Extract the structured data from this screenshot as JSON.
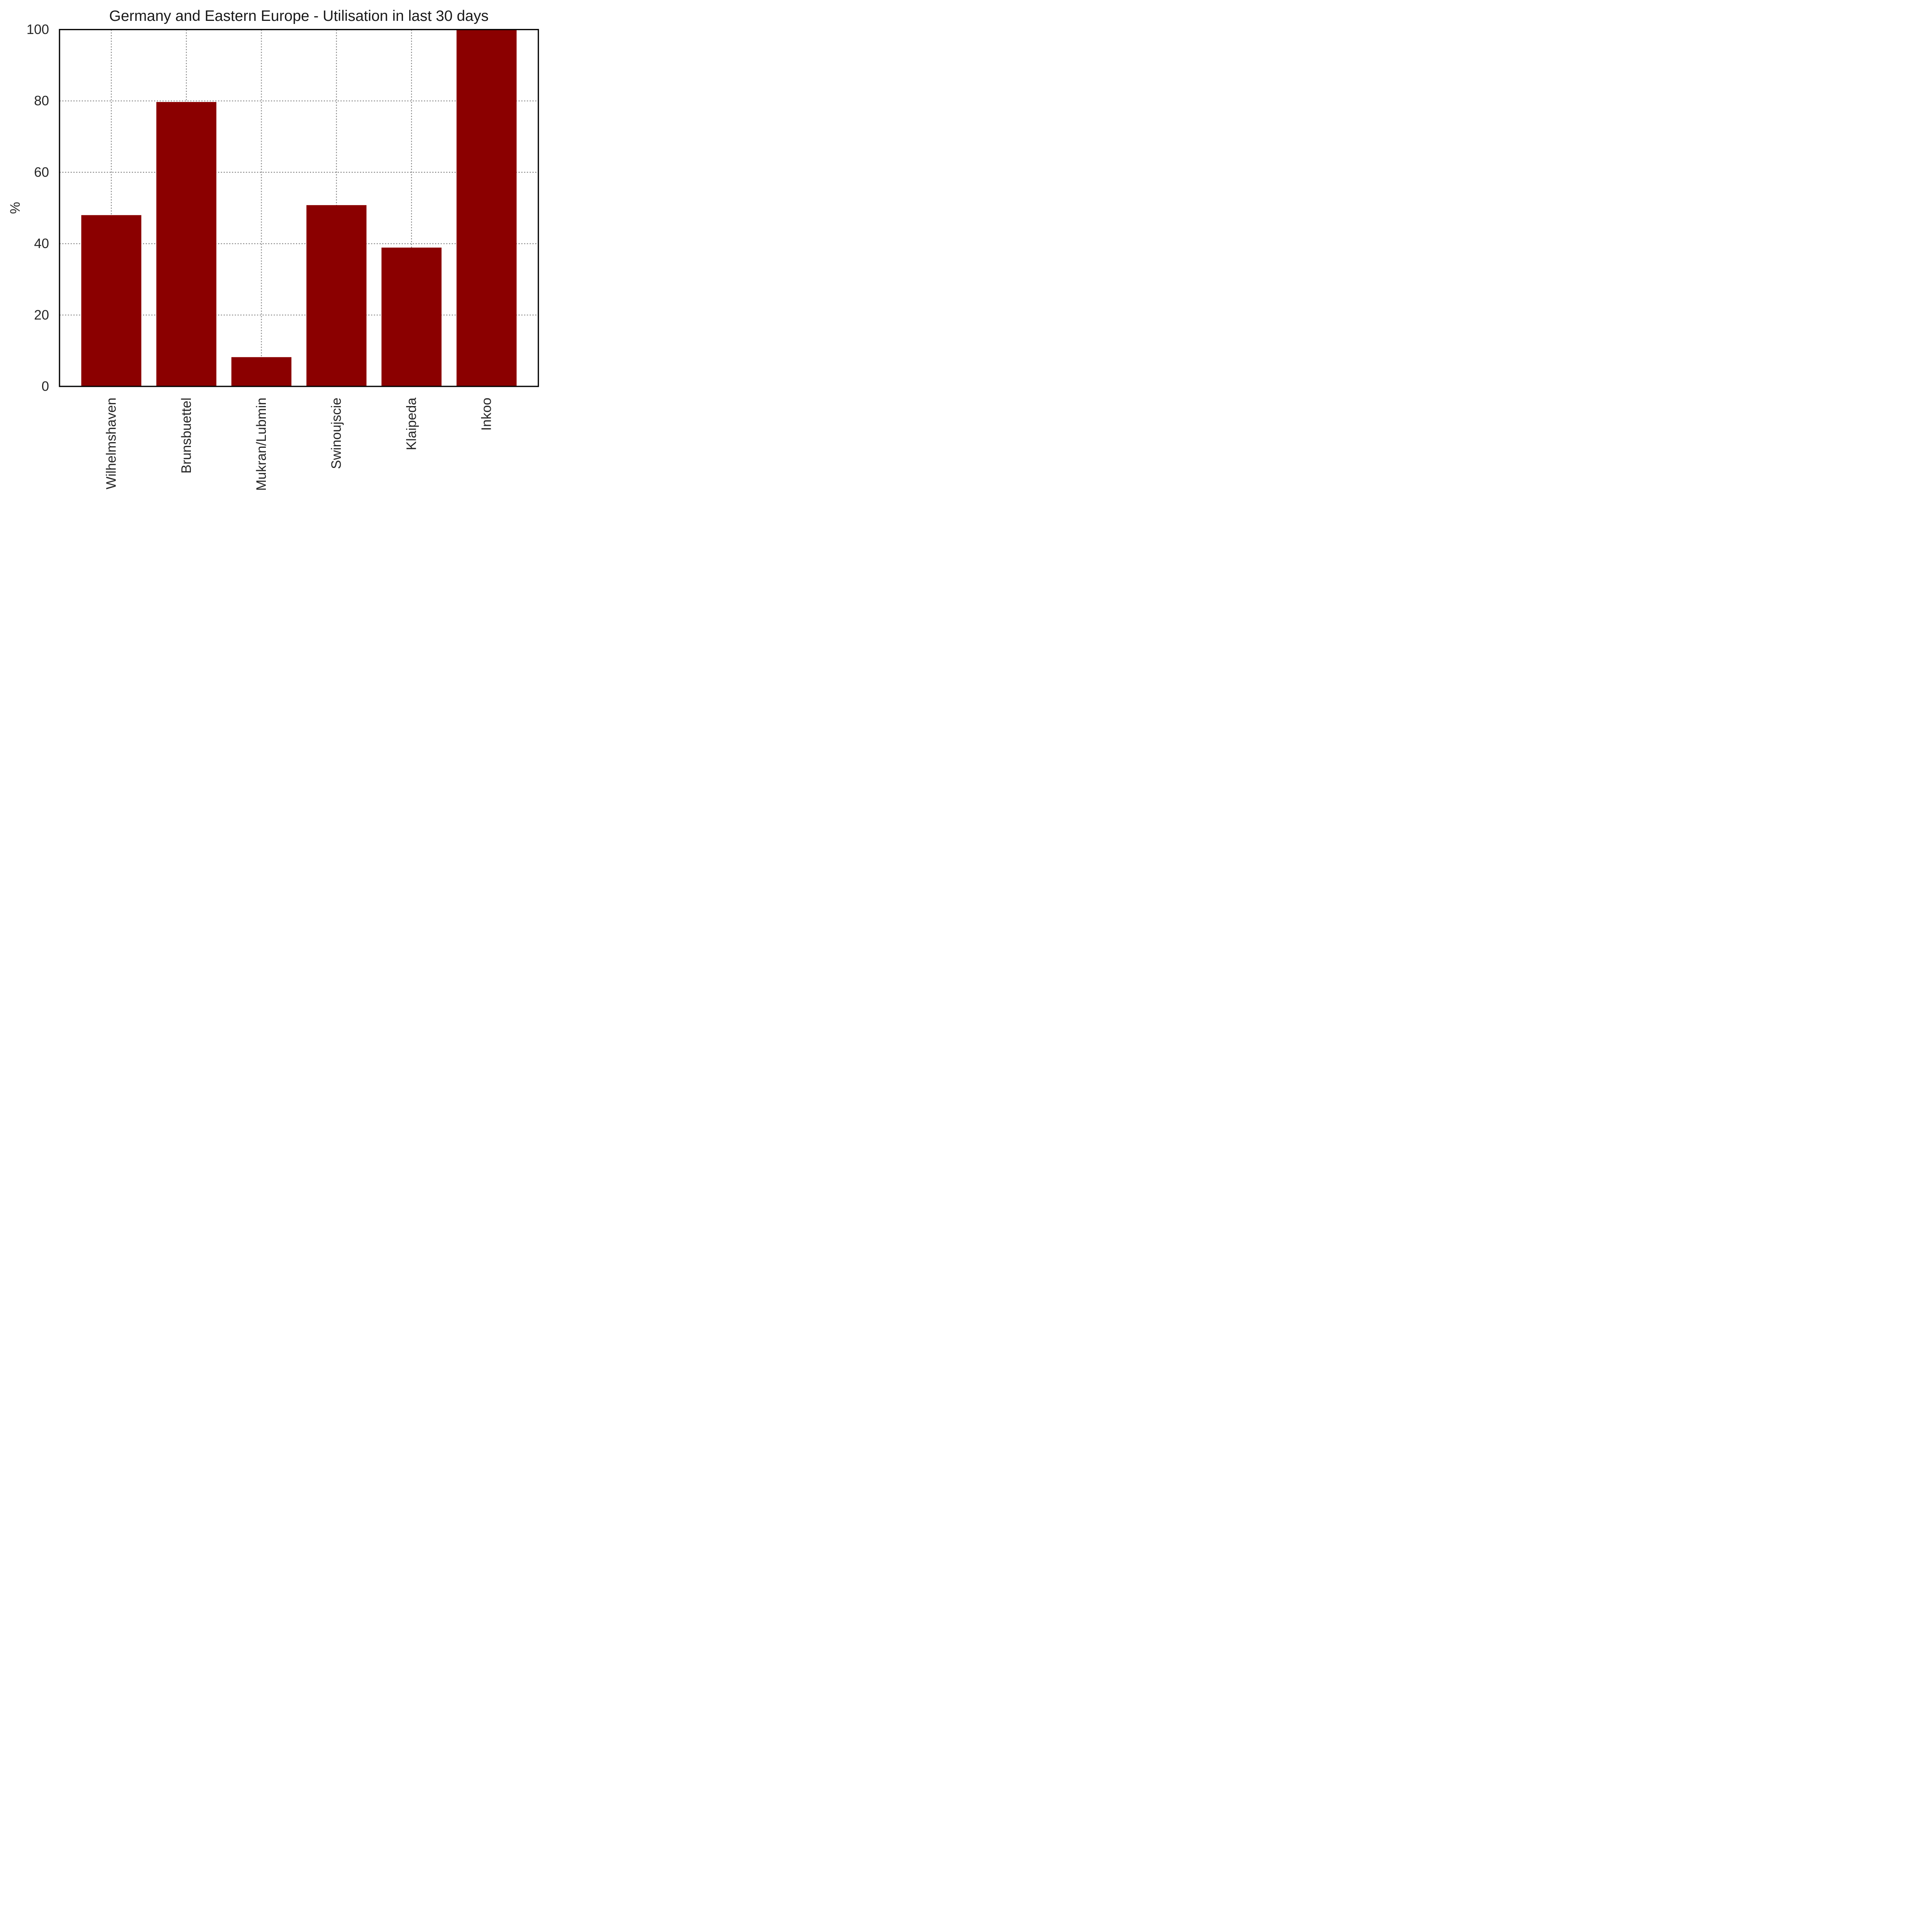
{
  "chart_data": {
    "type": "bar",
    "title": "Germany and Eastern Europe - Utilisation in last 30 days",
    "categories": [
      "Wilhelmshaven",
      "Brunsbuettel",
      "Mukran/Lubmin",
      "Swinoujscie",
      "Klaipeda",
      "Inkoo"
    ],
    "values": [
      48,
      79.7,
      8.2,
      50.8,
      38.9,
      100
    ],
    "xlabel": "",
    "ylabel": "%",
    "ylim": [
      0,
      100
    ],
    "yticks": [
      0,
      20,
      40,
      60,
      80,
      100
    ],
    "x_tick_rotation": 90,
    "legend": "none",
    "grid": "dotted gray gridlines at y ticks and at category centers, drawn behind bars",
    "bar_color": "#8b0000",
    "spine_color": "#000000",
    "grid_color": "#7f7f7f",
    "text_color": "#262626",
    "xlim_units": [
      -0.69,
      5.69
    ],
    "bar_width_units": 0.8
  }
}
